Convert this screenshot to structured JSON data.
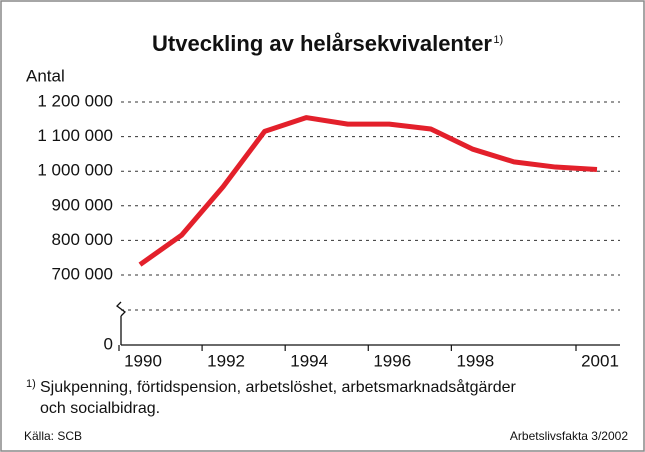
{
  "chart_data": {
    "type": "line",
    "title": "Utveckling av helårsekvivalenter",
    "title_note": "1)",
    "y_label": "Antal",
    "x": [
      1990,
      1991,
      1992,
      1993,
      1994,
      1995,
      1996,
      1997,
      1998,
      1999,
      2000,
      2001
    ],
    "series": [
      {
        "name": "Helårsekvivalenter",
        "color": "#e3202b",
        "values": [
          730000,
          815000,
          955000,
          1115000,
          1155000,
          1136000,
          1136000,
          1122000,
          1064000,
          1027000,
          1012000,
          1005000
        ]
      }
    ],
    "xlim": [
      1990,
      2001
    ],
    "xticks": [
      1990,
      1992,
      1994,
      1996,
      1998,
      2001
    ],
    "ylim": [
      0,
      1200000
    ],
    "yticks": [
      0,
      {
        "value": 700000,
        "label": "700 000"
      },
      {
        "value": 800000,
        "label": "800 000"
      },
      {
        "value": 900000,
        "label": "900 000"
      },
      {
        "value": 1000000,
        "label": "1 000 000"
      },
      {
        "value": 1100000,
        "label": "1 100 000"
      },
      {
        "value": 1200000,
        "label": "1 200 000"
      }
    ],
    "axis_break": true,
    "grid": true,
    "footnote": {
      "marker": "1)",
      "lines": [
        "Sjukpenning, förtidspension, arbetslöshet, arbetsmarknadsåtgärder",
        "och socialbidrag."
      ]
    },
    "source": "Källa: SCB",
    "publication": "Arbetslivsfakta 3/2002"
  }
}
